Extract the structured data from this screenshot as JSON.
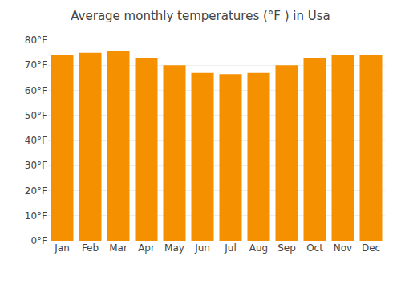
{
  "chart_data": {
    "type": "bar",
    "title": "Average monthly temperatures (°F ) in Usa",
    "categories": [
      "Jan",
      "Feb",
      "Mar",
      "Apr",
      "May",
      "Jun",
      "Jul",
      "Aug",
      "Sep",
      "Oct",
      "Nov",
      "Dec"
    ],
    "values": [
      74,
      75,
      75.5,
      73,
      70,
      67,
      66.5,
      67,
      70,
      73,
      74,
      74
    ],
    "color": "#F59000",
    "ylim": [
      0,
      80
    ],
    "yticks": [
      {
        "value": 0,
        "label": "0°F"
      },
      {
        "value": 10,
        "label": "10°F"
      },
      {
        "value": 20,
        "label": "20°F"
      },
      {
        "value": 30,
        "label": "30°F"
      },
      {
        "value": 40,
        "label": "40°F"
      },
      {
        "value": 50,
        "label": "50°F"
      },
      {
        "value": 60,
        "label": "60°F"
      },
      {
        "value": 70,
        "label": "70°F"
      },
      {
        "value": 80,
        "label": "80°F"
      }
    ],
    "grid": true
  }
}
